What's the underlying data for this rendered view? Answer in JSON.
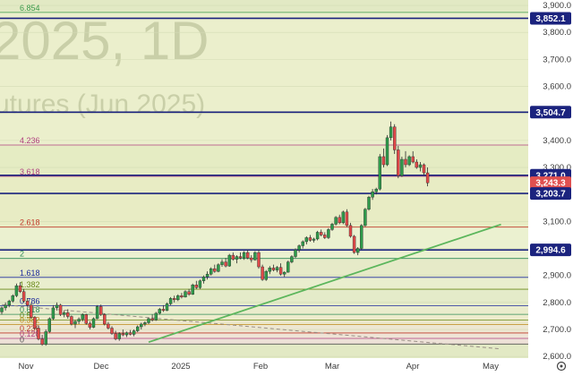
{
  "chart_data": {
    "type": "candlestick",
    "watermark": {
      "line1": "2025, 1D",
      "line2": "utures (Jun 2025)"
    },
    "x_labels": [
      "Nov",
      "Dec",
      "2025",
      "Feb",
      "Mar",
      "Apr",
      "May"
    ],
    "y_ticks": [
      2600,
      2700,
      2800,
      2900,
      3000,
      3100,
      3200,
      3300,
      3400,
      3500,
      3600,
      3700,
      3800,
      3900
    ],
    "y_tick_labels": [
      "2,600.0",
      "2,700.0",
      "2,800.0",
      "2,900.0",
      "3,000.0",
      "3,100.0",
      "3,200.0",
      "3,300.0",
      "3,400.0",
      "3,500.0",
      "3,600.0",
      "3,700.0",
      "3,800.0",
      "3,900.0"
    ],
    "ylim": [
      2594,
      3920
    ],
    "price_levels": [
      {
        "value": 3852.1,
        "label": "3,852.1"
      },
      {
        "value": 3504.7,
        "label": "3,504.7"
      },
      {
        "value": 3271.0,
        "label": "3,271.0"
      },
      {
        "value": 3243.3,
        "label": "3,243.3",
        "current": true
      },
      {
        "value": 3203.7,
        "label": "3,203.7"
      },
      {
        "value": 2994.6,
        "label": "2,994.6"
      }
    ],
    "fib_levels": [
      {
        "label": "6.854",
        "value": 3874
      },
      {
        "label": "4.236",
        "value": 3383
      },
      {
        "label": "3.618",
        "value": 3267
      },
      {
        "label": "2.618",
        "value": 3079
      },
      {
        "label": "2",
        "value": 2963
      },
      {
        "label": "1.618",
        "value": 2893
      },
      {
        "label": "1.382",
        "value": 2849
      },
      {
        "label": "0.786",
        "value": 2788
      },
      {
        "label": "0.618",
        "value": 2756
      },
      {
        "label": "0.5",
        "value": 2735
      },
      {
        "label": "0.382",
        "value": 2718
      },
      {
        "label": "0.236",
        "value": 2687
      },
      {
        "label": "0.128",
        "value": 2667
      },
      {
        "label": "0",
        "value": 2646
      }
    ],
    "trendline": {
      "start": {
        "bar": 40,
        "value": 2653
      },
      "end": {
        "bar": 136,
        "value": 3089
      }
    },
    "dashed_line": {
      "start": {
        "bar": 0,
        "value": 2792
      },
      "end": {
        "bar": 136,
        "value": 2628
      }
    },
    "candles": [
      [
        2765,
        2785,
        2755,
        2780
      ],
      [
        2780,
        2800,
        2770,
        2790
      ],
      [
        2790,
        2810,
        2782,
        2805
      ],
      [
        2805,
        2830,
        2800,
        2825
      ],
      [
        2825,
        2870,
        2820,
        2862
      ],
      [
        2862,
        2875,
        2835,
        2840
      ],
      [
        2840,
        2850,
        2800,
        2805
      ],
      [
        2805,
        2815,
        2785,
        2790
      ],
      [
        2790,
        2798,
        2740,
        2745
      ],
      [
        2745,
        2750,
        2700,
        2705
      ],
      [
        2705,
        2715,
        2660,
        2665
      ],
      [
        2665,
        2680,
        2640,
        2645
      ],
      [
        2645,
        2700,
        2640,
        2692
      ],
      [
        2692,
        2745,
        2688,
        2740
      ],
      [
        2740,
        2790,
        2735,
        2780
      ],
      [
        2780,
        2800,
        2770,
        2790
      ],
      [
        2790,
        2795,
        2750,
        2755
      ],
      [
        2755,
        2770,
        2745,
        2762
      ],
      [
        2762,
        2775,
        2740,
        2748
      ],
      [
        2748,
        2752,
        2715,
        2720
      ],
      [
        2720,
        2735,
        2705,
        2730
      ],
      [
        2730,
        2745,
        2720,
        2738
      ],
      [
        2738,
        2760,
        2730,
        2755
      ],
      [
        2755,
        2758,
        2718,
        2722
      ],
      [
        2722,
        2730,
        2700,
        2708
      ],
      [
        2708,
        2745,
        2705,
        2740
      ],
      [
        2740,
        2790,
        2738,
        2785
      ],
      [
        2785,
        2792,
        2750,
        2755
      ],
      [
        2755,
        2760,
        2715,
        2720
      ],
      [
        2720,
        2728,
        2700,
        2705
      ],
      [
        2705,
        2712,
        2680,
        2685
      ],
      [
        2685,
        2695,
        2660,
        2665
      ],
      [
        2665,
        2690,
        2658,
        2685
      ],
      [
        2685,
        2700,
        2675,
        2680
      ],
      [
        2680,
        2692,
        2672,
        2688
      ],
      [
        2688,
        2698,
        2678,
        2682
      ],
      [
        2682,
        2700,
        2675,
        2695
      ],
      [
        2695,
        2715,
        2690,
        2710
      ],
      [
        2710,
        2725,
        2700,
        2720
      ],
      [
        2720,
        2730,
        2712,
        2725
      ],
      [
        2725,
        2745,
        2720,
        2740
      ],
      [
        2740,
        2755,
        2730,
        2735
      ],
      [
        2735,
        2765,
        2732,
        2760
      ],
      [
        2760,
        2780,
        2755,
        2775
      ],
      [
        2775,
        2790,
        2765,
        2770
      ],
      [
        2770,
        2800,
        2768,
        2795
      ],
      [
        2795,
        2820,
        2790,
        2815
      ],
      [
        2815,
        2825,
        2800,
        2810
      ],
      [
        2810,
        2830,
        2805,
        2825
      ],
      [
        2825,
        2835,
        2815,
        2820
      ],
      [
        2820,
        2845,
        2818,
        2840
      ],
      [
        2840,
        2850,
        2825,
        2830
      ],
      [
        2830,
        2870,
        2828,
        2865
      ],
      [
        2865,
        2880,
        2850,
        2855
      ],
      [
        2855,
        2885,
        2850,
        2880
      ],
      [
        2880,
        2900,
        2870,
        2895
      ],
      [
        2895,
        2915,
        2885,
        2905
      ],
      [
        2905,
        2930,
        2900,
        2925
      ],
      [
        2925,
        2940,
        2910,
        2915
      ],
      [
        2915,
        2945,
        2912,
        2940
      ],
      [
        2940,
        2960,
        2932,
        2950
      ],
      [
        2950,
        2965,
        2930,
        2935
      ],
      [
        2935,
        2980,
        2932,
        2975
      ],
      [
        2975,
        2985,
        2955,
        2960
      ],
      [
        2960,
        2975,
        2945,
        2970
      ],
      [
        2970,
        2985,
        2960,
        2965
      ],
      [
        2965,
        2990,
        2958,
        2985
      ],
      [
        2985,
        2995,
        2960,
        2965
      ],
      [
        2965,
        2975,
        2948,
        2958
      ],
      [
        2958,
        2990,
        2955,
        2985
      ],
      [
        2985,
        2995,
        2925,
        2932
      ],
      [
        2932,
        2940,
        2880,
        2885
      ],
      [
        2885,
        2920,
        2880,
        2915
      ],
      [
        2915,
        2935,
        2905,
        2928
      ],
      [
        2928,
        2940,
        2915,
        2920
      ],
      [
        2920,
        2935,
        2912,
        2930
      ],
      [
        2930,
        2945,
        2900,
        2905
      ],
      [
        2905,
        2915,
        2895,
        2912
      ],
      [
        2912,
        2955,
        2910,
        2950
      ],
      [
        2950,
        2975,
        2945,
        2970
      ],
      [
        2970,
        3000,
        2965,
        2995
      ],
      [
        2995,
        3015,
        2985,
        3010
      ],
      [
        3010,
        3030,
        3000,
        3025
      ],
      [
        3025,
        3045,
        3015,
        3040
      ],
      [
        3040,
        3050,
        3025,
        3030
      ],
      [
        3030,
        3040,
        3022,
        3035
      ],
      [
        3035,
        3065,
        3030,
        3060
      ],
      [
        3060,
        3070,
        3045,
        3050
      ],
      [
        3050,
        3060,
        3035,
        3040
      ],
      [
        3040,
        3075,
        3035,
        3070
      ],
      [
        3070,
        3095,
        3065,
        3090
      ],
      [
        3090,
        3120,
        3085,
        3115
      ],
      [
        3115,
        3125,
        3090,
        3095
      ],
      [
        3095,
        3140,
        3090,
        3135
      ],
      [
        3135,
        3145,
        3080,
        3085
      ],
      [
        3085,
        3095,
        3040,
        3045
      ],
      [
        3045,
        3050,
        2980,
        2985
      ],
      [
        2985,
        3005,
        2975,
        3000
      ],
      [
        3000,
        3090,
        2995,
        3085
      ],
      [
        3085,
        3150,
        3080,
        3145
      ],
      [
        3145,
        3195,
        3140,
        3190
      ],
      [
        3190,
        3220,
        3180,
        3210
      ],
      [
        3210,
        3225,
        3200,
        3220
      ],
      [
        3220,
        3350,
        3215,
        3340
      ],
      [
        3340,
        3370,
        3300,
        3310
      ],
      [
        3310,
        3420,
        3305,
        3410
      ],
      [
        3410,
        3470,
        3400,
        3450
      ],
      [
        3450,
        3460,
        3350,
        3365
      ],
      [
        3365,
        3380,
        3260,
        3270
      ],
      [
        3270,
        3340,
        3265,
        3330
      ],
      [
        3330,
        3360,
        3300,
        3310
      ],
      [
        3310,
        3345,
        3305,
        3340
      ],
      [
        3340,
        3360,
        3315,
        3320
      ],
      [
        3320,
        3330,
        3295,
        3300
      ],
      [
        3300,
        3320,
        3285,
        3310
      ],
      [
        3310,
        3315,
        3270,
        3280
      ],
      [
        3280,
        3300,
        3230,
        3243
      ]
    ]
  }
}
